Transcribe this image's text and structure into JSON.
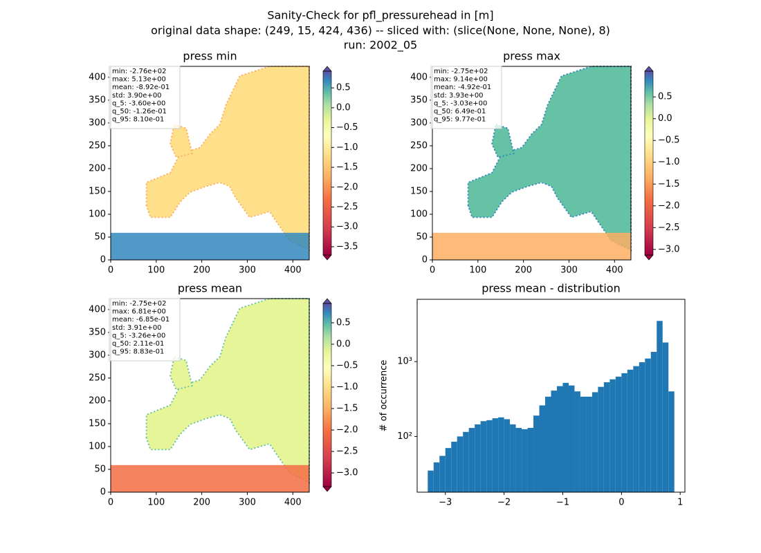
{
  "figure_title": [
    "Sanity-Check for pfl_pressurehead in [m]",
    "original data shape: (249, 15, 424, 436) -- sliced with: (slice(None, None, None), 8)",
    "run: 2002_05"
  ],
  "chart_data": [
    {
      "type": "heatmap",
      "title": "press min",
      "xlim": [
        0,
        436
      ],
      "ylim": [
        0,
        424
      ],
      "xticks": [
        0,
        100,
        200,
        300,
        400
      ],
      "yticks": [
        0,
        50,
        100,
        150,
        200,
        250,
        300,
        350,
        400
      ],
      "stats": [
        "min: -2.76e+02",
        "max: 5.13e+00",
        "mean: -8.92e-01",
        "std: 3.90e+00",
        "q_5: -3.60e+00",
        "q_50: -1.26e-01",
        "q_95: 8.10e-01"
      ],
      "clim": [
        -3.71,
        0.92
      ],
      "cticks": [
        0.5,
        {
          "value": 0,
          "label": "0.0"
        },
        {
          "value": -0.5,
          "label": "−0.5"
        },
        {
          "value": -1,
          "label": "−1.0"
        },
        {
          "value": -1.5,
          "label": "−1.5"
        },
        {
          "value": -2,
          "label": "−2.0"
        },
        {
          "value": -2.5,
          "label": "−2.5"
        },
        {
          "value": -3,
          "label": "−3.0"
        },
        {
          "value": -3.5,
          "label": "−3.5"
        }
      ]
    },
    {
      "type": "heatmap",
      "title": "press max",
      "xlim": [
        0,
        436
      ],
      "ylim": [
        0,
        424
      ],
      "xticks": [
        0,
        100,
        200,
        300,
        400
      ],
      "yticks": [
        0,
        50,
        100,
        150,
        200,
        250,
        300,
        350,
        400
      ],
      "stats": [
        "min: -2.75e+02",
        "max: 9.14e+00",
        "mean: -4.92e-01",
        "std: 3.93e+00",
        "q_5: -3.03e+00",
        "q_50: 6.49e-01",
        "q_95: 9.77e-01"
      ],
      "clim": [
        -3.13,
        1.09
      ],
      "cticks": [
        0.5,
        {
          "value": 0,
          "label": "0.0"
        },
        {
          "value": -0.5,
          "label": "−0.5"
        },
        {
          "value": -1,
          "label": "−1.0"
        },
        {
          "value": -1.5,
          "label": "−1.5"
        },
        {
          "value": -2,
          "label": "−2.0"
        },
        {
          "value": -2.5,
          "label": "−2.5"
        },
        {
          "value": -3,
          "label": "−3.0"
        }
      ]
    },
    {
      "type": "heatmap",
      "title": "press mean",
      "xlim": [
        0,
        436
      ],
      "ylim": [
        0,
        424
      ],
      "xticks": [
        0,
        100,
        200,
        300,
        400
      ],
      "yticks": [
        0,
        50,
        100,
        150,
        200,
        250,
        300,
        350,
        400
      ],
      "stats": [
        "min: -2.75e+02",
        "max: 6.81e+00",
        "mean: -6.85e-01",
        "std: 3.91e+00",
        "q_5: -3.26e+00",
        "q_50: 2.11e-01",
        "q_95: 8.83e-01"
      ],
      "clim": [
        -3.32,
        0.95
      ],
      "cticks": [
        0.5,
        {
          "value": 0,
          "label": "0.0"
        },
        {
          "value": -0.5,
          "label": "−0.5"
        },
        {
          "value": -1,
          "label": "−1.0"
        },
        {
          "value": -1.5,
          "label": "−1.5"
        },
        {
          "value": -2,
          "label": "−2.0"
        },
        {
          "value": -2.5,
          "label": "−2.5"
        },
        {
          "value": -3,
          "label": "−3.0"
        }
      ]
    },
    {
      "type": "histogram",
      "title": "press mean - distribution",
      "ylabel": "# of occurrence",
      "color": "#1f77b4",
      "log_y": true,
      "bins": [
        -3.3,
        -3.2,
        -3.1,
        -3.0,
        -2.9,
        -2.8,
        -2.7,
        -2.6,
        -2.5,
        -2.4,
        -2.3,
        -2.2,
        -2.1,
        -2.0,
        -1.9,
        -1.8,
        -1.7,
        -1.6,
        -1.5,
        -1.4,
        -1.3,
        -1.2,
        -1.1,
        -1.0,
        -0.9,
        -0.8,
        -0.7,
        -0.6,
        -0.5,
        -0.4,
        -0.3,
        -0.2,
        -0.1,
        0.0,
        0.1,
        0.2,
        0.3,
        0.4,
        0.5,
        0.6,
        0.7,
        0.8,
        0.9
      ],
      "counts": [
        35,
        45,
        55,
        70,
        85,
        100,
        115,
        130,
        145,
        160,
        165,
        175,
        180,
        170,
        145,
        130,
        125,
        130,
        190,
        260,
        340,
        410,
        470,
        520,
        480,
        400,
        340,
        340,
        390,
        460,
        530,
        580,
        630,
        700,
        780,
        870,
        980,
        1100,
        1350,
        3500,
        1800,
        400
      ],
      "xlim": [
        -3.48,
        1.08
      ],
      "ylim": [
        18,
        6800
      ],
      "xticks": [
        {
          "value": -3,
          "label": "−3"
        },
        {
          "value": -2,
          "label": "−2"
        },
        {
          "value": -1,
          "label": "−1"
        },
        0,
        1
      ],
      "yticks": [
        {
          "value": 100,
          "label": "10²"
        },
        {
          "value": 1000,
          "label": "10³"
        }
      ]
    }
  ]
}
